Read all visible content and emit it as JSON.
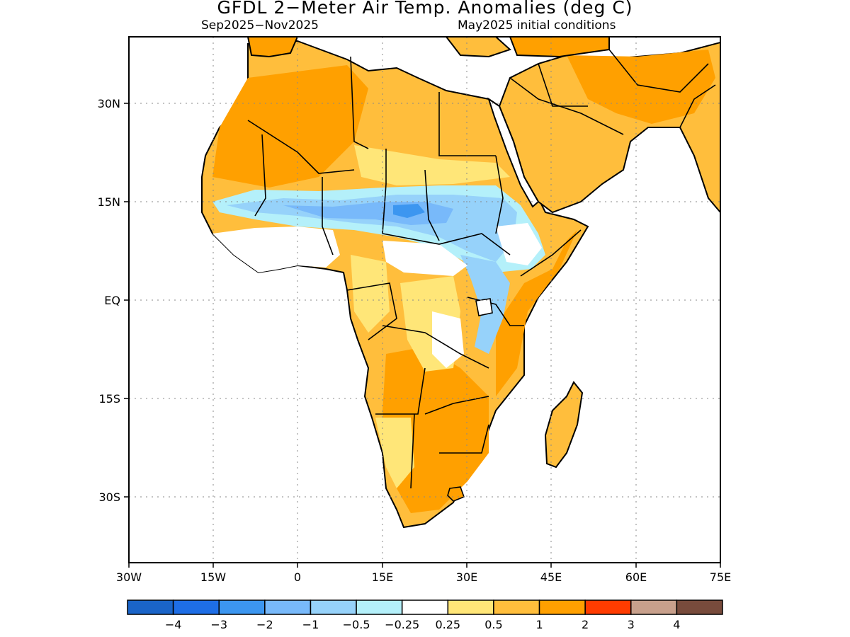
{
  "title": "GFDL 2−Meter Air Temp. Anomalies (deg C)",
  "subtitle_left": "Sep2025−Nov2025",
  "subtitle_right": "May2025 initial conditions",
  "map": {
    "region": "Africa and Arabian Peninsula",
    "lon_range": [
      -30,
      75
    ],
    "lat_range": [
      -40,
      40
    ],
    "gridlines": "dotted",
    "x_ticks": [
      "30W",
      "15W",
      "0",
      "15E",
      "30E",
      "45E",
      "60E",
      "75E"
    ],
    "y_ticks": [
      "30N",
      "15N",
      "EQ",
      "15S",
      "30S"
    ]
  },
  "colorbar": {
    "colors": [
      "#1a64c8",
      "#1e6ee6",
      "#3c96f0",
      "#78b9fa",
      "#96d2fa",
      "#b4f0fa",
      "#ffffff",
      "#ffe678",
      "#ffbe3c",
      "#ffa000",
      "#ff3c00",
      "#c8a08c",
      "#784b3c"
    ],
    "labels": [
      "−4",
      "−3",
      "−2",
      "−1",
      "−0.5",
      "−0.25",
      "0.25",
      "0.5",
      "1",
      "2",
      "3",
      "4"
    ]
  }
}
